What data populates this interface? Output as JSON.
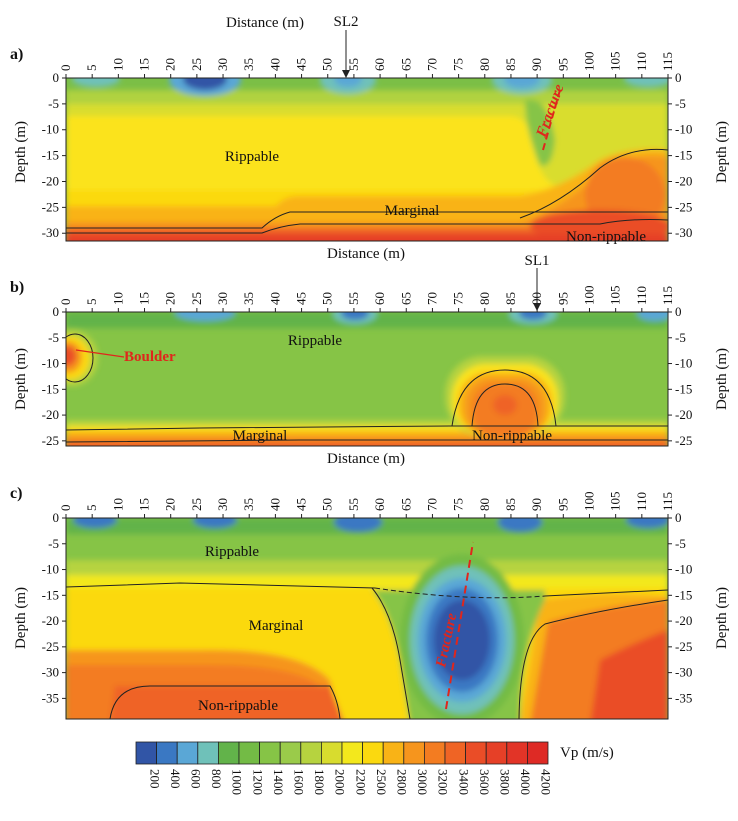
{
  "chart_data": [
    {
      "type": "heatmap",
      "panel_label": "a)",
      "top_label": "Distance (m)",
      "xlabel": "Distance (m)",
      "ylabel": "Depth (m)",
      "ylabel_right": "Depth (m)",
      "x_ticks": [
        0,
        5,
        10,
        15,
        20,
        25,
        30,
        35,
        40,
        45,
        50,
        55,
        60,
        65,
        70,
        75,
        80,
        85,
        90,
        95,
        100,
        105,
        110,
        115
      ],
      "y_ticks": [
        0,
        -5,
        -10,
        -15,
        -20,
        -25,
        -30
      ],
      "xlim": [
        0,
        115
      ],
      "ylim": [
        -31.5,
        0
      ],
      "marker": {
        "label": "SL2",
        "x": 53.5
      },
      "zones": [
        {
          "label": "Rippable",
          "x": 25,
          "y": -15
        },
        {
          "label": "Marginal",
          "x": 54,
          "y": -25.5
        },
        {
          "label": "Non-rippable",
          "x": 107,
          "y": -30.5
        }
      ],
      "annotation": {
        "label": "Fracture",
        "x": 93,
        "y": -10
      }
    },
    {
      "type": "heatmap",
      "panel_label": "b)",
      "xlabel": "Distance (m)",
      "ylabel": "Depth (m)",
      "ylabel_right": "Depth (m)",
      "x_ticks": [
        0,
        5,
        10,
        15,
        20,
        25,
        30,
        35,
        40,
        45,
        50,
        55,
        60,
        65,
        70,
        75,
        80,
        85,
        90,
        95,
        100,
        105,
        110,
        115
      ],
      "y_ticks": [
        0,
        -5,
        -10,
        -15,
        -20,
        -25
      ],
      "xlim": [
        0,
        115
      ],
      "ylim": [
        -26,
        0
      ],
      "marker": {
        "label": "SL1",
        "x": 90
      },
      "zones": [
        {
          "label": "Rippable",
          "x": 47,
          "y": -5.5
        },
        {
          "label": "Marginal",
          "x": 37,
          "y": -24
        },
        {
          "label": "Non-rippable",
          "x": 85,
          "y": -24
        }
      ],
      "annotation": {
        "label": "Boulder",
        "x": 16,
        "y": -9
      }
    },
    {
      "type": "heatmap",
      "panel_label": "c)",
      "ylabel": "Depth (m)",
      "ylabel_right": "Depth (m)",
      "x_ticks": [
        0,
        5,
        10,
        15,
        20,
        25,
        30,
        35,
        40,
        45,
        50,
        55,
        60,
        65,
        70,
        75,
        80,
        85,
        90,
        95,
        100,
        105,
        110,
        115
      ],
      "y_ticks": [
        0,
        -5,
        -10,
        -15,
        -20,
        -25,
        -30,
        -35
      ],
      "xlim": [
        0,
        115
      ],
      "ylim": [
        -39,
        0
      ],
      "zones": [
        {
          "label": "Rippable",
          "x": 33,
          "y": -6.5
        },
        {
          "label": "Marginal",
          "x": 40,
          "y": -21.5
        },
        {
          "label": "Non-rippable",
          "x": 33,
          "y": -36.5
        }
      ],
      "annotation": {
        "label": "Fracture",
        "x": 72,
        "y": -23
      }
    }
  ],
  "colorbar": {
    "title": "Vp (m/s)",
    "levels": [
      200,
      400,
      600,
      800,
      1000,
      1200,
      1400,
      1600,
      1800,
      2000,
      2200,
      2500,
      2800,
      3000,
      3200,
      3400,
      3600,
      3800,
      4000,
      4200
    ],
    "colors": [
      "#3155a6",
      "#3a78c3",
      "#5aa7d6",
      "#6fc1b9",
      "#62b34a",
      "#73bb45",
      "#86c446",
      "#9acb4a",
      "#b6d33f",
      "#d8dc2e",
      "#f3e81c",
      "#fbd90f",
      "#f9b316",
      "#f6951d",
      "#f37c21",
      "#ef6425",
      "#ea4d27",
      "#e64027",
      "#e23427",
      "#de2a25"
    ]
  }
}
